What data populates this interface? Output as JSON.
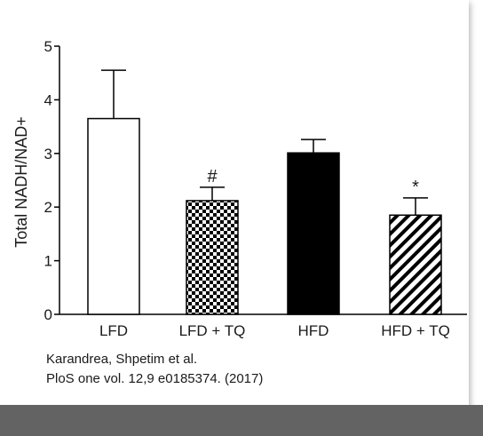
{
  "chart_data": {
    "type": "bar",
    "ylabel": "Total NADH/NAD+",
    "xlabel": "",
    "ylim": [
      0,
      5
    ],
    "yticks": [
      "0",
      "1",
      "2",
      "3",
      "4",
      "5"
    ],
    "categories": [
      "LFD",
      "LFD + TQ",
      "HFD",
      "HFD + TQ"
    ],
    "values": [
      3.65,
      2.12,
      3.01,
      1.85
    ],
    "errors": [
      0.9,
      0.25,
      0.25,
      0.32
    ],
    "annotations": [
      "",
      "#",
      "",
      "*"
    ],
    "fills": [
      "white",
      "checkered",
      "black",
      "diagonal-stripes"
    ]
  },
  "source": {
    "authors": "Karandrea, Shpetim et al.",
    "citation": "PloS one vol. 12,9 e0185374. (2017)"
  },
  "colors": {
    "bar_outline": "#000000",
    "bar_black": "#000000",
    "text": "#1a1a1a",
    "bottom_bar": "#636363"
  }
}
